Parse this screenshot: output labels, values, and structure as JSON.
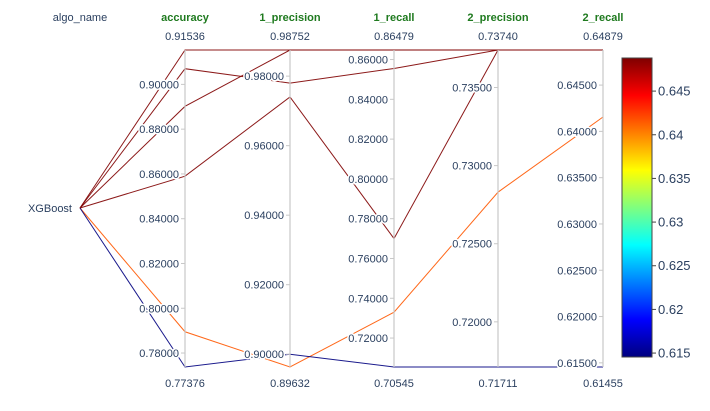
{
  "chart_data": {
    "type": "parallel_coordinates",
    "dimensions": [
      {
        "name": "algo_name",
        "categorical": true,
        "categories": [
          "XGBoost"
        ]
      },
      {
        "name": "accuracy",
        "range": [
          0.77376,
          0.91536
        ],
        "max_label": "0.91536",
        "min_label": "0.77376",
        "bold": true,
        "ticks": [
          0.78,
          0.8,
          0.82,
          0.84,
          0.86,
          0.88,
          0.9
        ],
        "tick_labels": [
          "0.78000",
          "0.80000",
          "0.82000",
          "0.84000",
          "0.86000",
          "0.88000",
          "0.90000"
        ]
      },
      {
        "name": "1_precision",
        "range": [
          0.89632,
          0.98752
        ],
        "max_label": "0.98752",
        "min_label": "0.89632",
        "bold": true,
        "ticks": [
          0.9,
          0.92,
          0.94,
          0.96,
          0.98
        ],
        "tick_labels": [
          "0.90000",
          "0.92000",
          "0.94000",
          "0.96000",
          "0.98000"
        ]
      },
      {
        "name": "1_recall",
        "range": [
          0.70545,
          0.86479
        ],
        "max_label": "0.86479",
        "min_label": "0.70545",
        "bold": true,
        "ticks": [
          0.72,
          0.74,
          0.76,
          0.78,
          0.8,
          0.82,
          0.84,
          0.86
        ],
        "tick_labels": [
          "0.72000",
          "0.74000",
          "0.76000",
          "0.78000",
          "0.80000",
          "0.82000",
          "0.84000",
          "0.86000"
        ]
      },
      {
        "name": "2_precision",
        "range": [
          0.71711,
          0.7374
        ],
        "max_label": "0.73740",
        "min_label": "0.71711",
        "bold": true,
        "ticks": [
          0.72,
          0.725,
          0.73,
          0.735
        ],
        "tick_labels": [
          "0.72000",
          "0.72500",
          "0.73000",
          "0.73500"
        ]
      },
      {
        "name": "2_recall",
        "range": [
          0.61455,
          0.64879
        ],
        "max_label": "0.64879",
        "min_label": "0.61455",
        "bold": true,
        "ticks": [
          0.615,
          0.62,
          0.625,
          0.63,
          0.635,
          0.64,
          0.645
        ],
        "tick_labels": [
          "0.61500",
          "0.62000",
          "0.62500",
          "0.63000",
          "0.63500",
          "0.64000",
          "0.64500"
        ]
      }
    ],
    "lines": [
      {
        "algo_name": "XGBoost",
        "accuracy": 0.8902,
        "1_precision": 0.98752,
        "1_recall": 0.86479,
        "2_precision": 0.7374,
        "2_recall": 0.64879,
        "color_value": 0.64879
      },
      {
        "algo_name": "XGBoost",
        "accuracy": 0.907,
        "1_precision": 0.978,
        "1_recall": 0.8555,
        "2_precision": 0.7374,
        "2_recall": 0.64879,
        "color_value": 0.64879
      },
      {
        "algo_name": "XGBoost",
        "accuracy": 0.859,
        "1_precision": 0.974,
        "1_recall": 0.77,
        "2_precision": 0.7374,
        "2_recall": 0.64879,
        "color_value": 0.64879
      },
      {
        "algo_name": "XGBoost",
        "accuracy": 0.91536,
        "1_precision": 0.98752,
        "1_recall": 0.86479,
        "2_precision": 0.7374,
        "2_recall": 0.64879,
        "color_value": 0.64879
      },
      {
        "algo_name": "XGBoost",
        "accuracy": 0.7895,
        "1_precision": 0.89632,
        "1_recall": 0.733,
        "2_precision": 0.7283,
        "2_recall": 0.64155,
        "color_value": 0.64155
      },
      {
        "algo_name": "XGBoost",
        "accuracy": 0.77376,
        "1_precision": 0.9,
        "1_recall": 0.70545,
        "2_precision": 0.71711,
        "2_recall": 0.61455,
        "color_value": 0.61455
      }
    ],
    "colorbar": {
      "range": [
        0.61455,
        0.64879
      ],
      "ticks": [
        0.615,
        0.62,
        0.625,
        0.63,
        0.635,
        0.64,
        0.645
      ],
      "tick_labels": [
        "0.615",
        "0.62",
        "0.625",
        "0.63",
        "0.635",
        "0.64",
        "0.645"
      ],
      "colorscale": [
        "#00007f",
        "#0000ff",
        "#007fff",
        "#00ffff",
        "#7fff7f",
        "#ffff00",
        "#ff7f00",
        "#ff0000",
        "#7f0000"
      ]
    }
  }
}
